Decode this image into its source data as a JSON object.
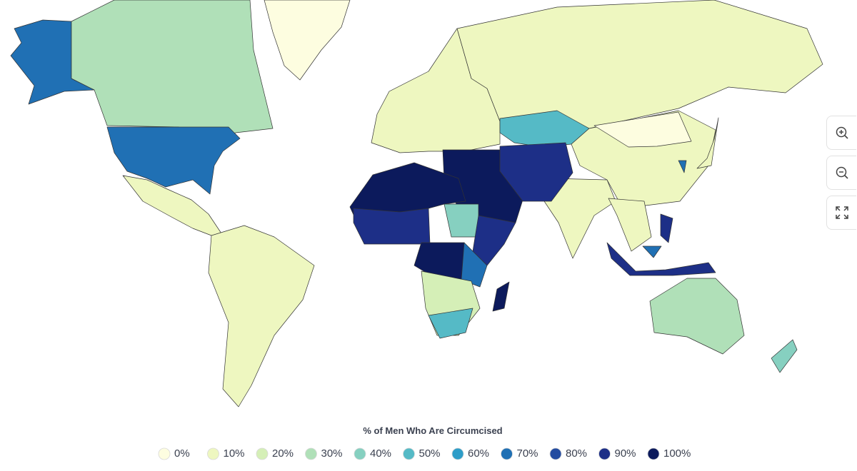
{
  "chart_data": {
    "type": "choropleth",
    "title": "% of Men Who Are Circumcised",
    "legend": [
      {
        "value": 0,
        "label": "0%",
        "color": "#fdfde0"
      },
      {
        "value": 10,
        "label": "10%",
        "color": "#eef7c0"
      },
      {
        "value": 20,
        "label": "20%",
        "color": "#d5efb7"
      },
      {
        "value": 30,
        "label": "30%",
        "color": "#b0e0b8"
      },
      {
        "value": 40,
        "label": "40%",
        "color": "#86d0c0"
      },
      {
        "value": 50,
        "label": "50%",
        "color": "#55bac6"
      },
      {
        "value": 60,
        "label": "60%",
        "color": "#2e9dc8"
      },
      {
        "value": 70,
        "label": "70%",
        "color": "#2070b4"
      },
      {
        "value": 80,
        "label": "80%",
        "color": "#234ba0"
      },
      {
        "value": 90,
        "label": "90%",
        "color": "#1d2f87"
      },
      {
        "value": 100,
        "label": "100%",
        "color": "#0c1a5c"
      }
    ],
    "values": [
      70,
      30,
      0,
      70,
      10,
      10,
      10,
      10,
      50,
      10,
      0,
      10,
      10,
      100,
      90,
      100,
      90,
      40,
      90,
      100,
      70,
      20,
      50,
      100,
      30,
      40,
      90,
      90,
      10,
      70,
      70
    ]
  }
}
